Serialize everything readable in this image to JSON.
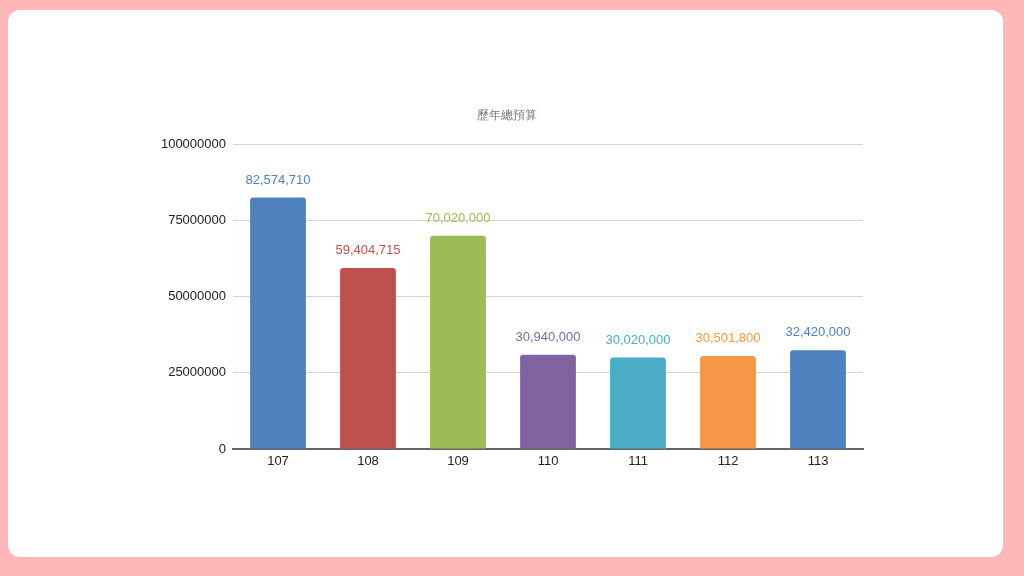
{
  "chart_data": {
    "type": "bar",
    "title": "歷年總預算",
    "categories": [
      "107",
      "108",
      "109",
      "110",
      "111",
      "112",
      "113"
    ],
    "values": [
      82574710,
      59404715,
      70020000,
      30940000,
      30020000,
      30501800,
      32420000
    ],
    "colors": [
      "#4f81bd",
      "#c0504d",
      "#9bbb59",
      "#8064a2",
      "#4bacc6",
      "#f79646",
      "#4f81bd"
    ],
    "value_labels": [
      "82,574,710",
      "59,404,715",
      "70,020,000",
      "30,940,000",
      "30,020,000",
      "30,501,800",
      "32,420,000"
    ],
    "ylim": [
      0,
      100000000
    ],
    "yticks": [
      0,
      25000000,
      50000000,
      75000000,
      100000000
    ],
    "grid": "y"
  }
}
